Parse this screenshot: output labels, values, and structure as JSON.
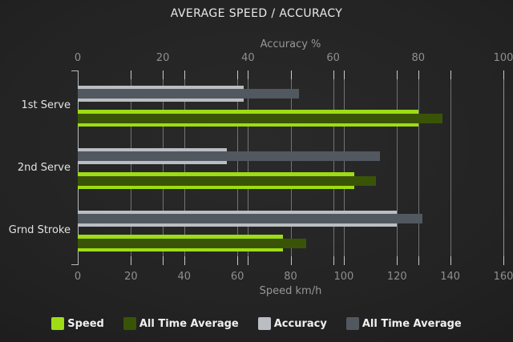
{
  "chart_data": {
    "type": "bar",
    "orientation": "horizontal",
    "title": "AVERAGE SPEED / ACCURACY",
    "categories": [
      "1st Serve",
      "2nd Serve",
      "Grnd Stroke"
    ],
    "series": [
      {
        "name": "Speed",
        "axis": "bottom",
        "role": "outer",
        "color": "#9edc15",
        "values": [
          128,
          104,
          77
        ]
      },
      {
        "name": "All Time Average",
        "axis": "bottom",
        "role": "inner",
        "color": "#3a5407",
        "values": [
          137,
          112,
          86
        ]
      },
      {
        "name": "Accuracy",
        "axis": "top",
        "role": "outer",
        "color": "#babec2",
        "values": [
          39,
          35,
          75
        ]
      },
      {
        "name": "All Time Average",
        "axis": "top",
        "role": "inner",
        "color": "#51585f",
        "values": [
          52,
          71,
          81
        ]
      }
    ],
    "top_axis": {
      "label": "Accuracy %",
      "min": 0,
      "max": 100,
      "ticks": [
        0,
        20,
        40,
        60,
        80,
        100
      ]
    },
    "bottom_axis": {
      "label": "Speed km/h",
      "min": 0,
      "max": 160,
      "ticks": [
        0,
        20,
        40,
        60,
        80,
        100,
        120,
        140,
        160
      ]
    },
    "grid": true,
    "legend_position": "bottom",
    "legend": [
      {
        "label": "Speed",
        "color": "#9edc15"
      },
      {
        "label": "All Time Average",
        "color": "#3a5407"
      },
      {
        "label": "Accuracy",
        "color": "#babec2"
      },
      {
        "label": "All Time Average",
        "color": "#51585f"
      }
    ]
  },
  "colors": {
    "background_center": "#2a2a2a",
    "background_edge": "#161616",
    "grid": "#a5aaad",
    "axis": "#b7bbbd",
    "title_text": "#e9e9e9",
    "tick_text": "#8f8f8f",
    "axis_title_text": "#979797",
    "category_text": "#e2e2e2",
    "legend_text": "#f0f0f0"
  }
}
